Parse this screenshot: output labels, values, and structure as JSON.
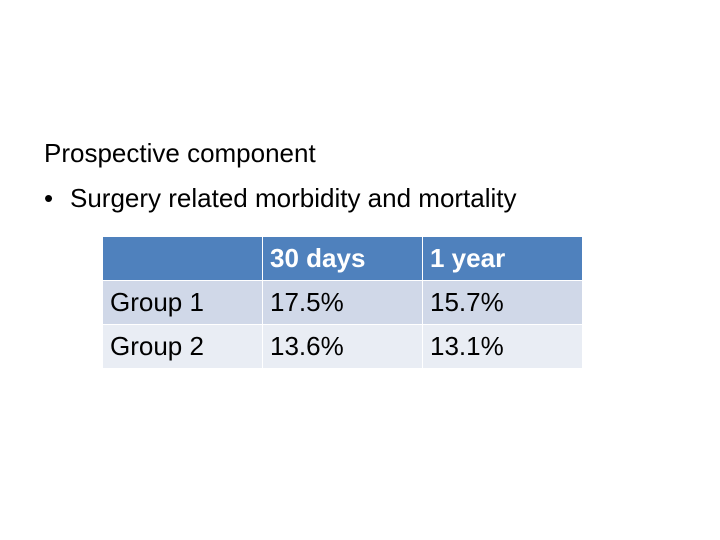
{
  "heading": "Prospective component",
  "bullet": {
    "marker": "•",
    "text": "Surgery related morbidity and mortality"
  },
  "table": {
    "header": [
      "",
      "30 days",
      "1 year"
    ],
    "rows": [
      [
        "Group 1",
        "17.5%",
        "15.7%"
      ],
      [
        "Group 2",
        "13.6%",
        "13.1%"
      ]
    ]
  },
  "colors": {
    "header_bg": "#4F81BD",
    "row_odd_bg": "#D0D8E8",
    "row_even_bg": "#E9EDF4"
  }
}
